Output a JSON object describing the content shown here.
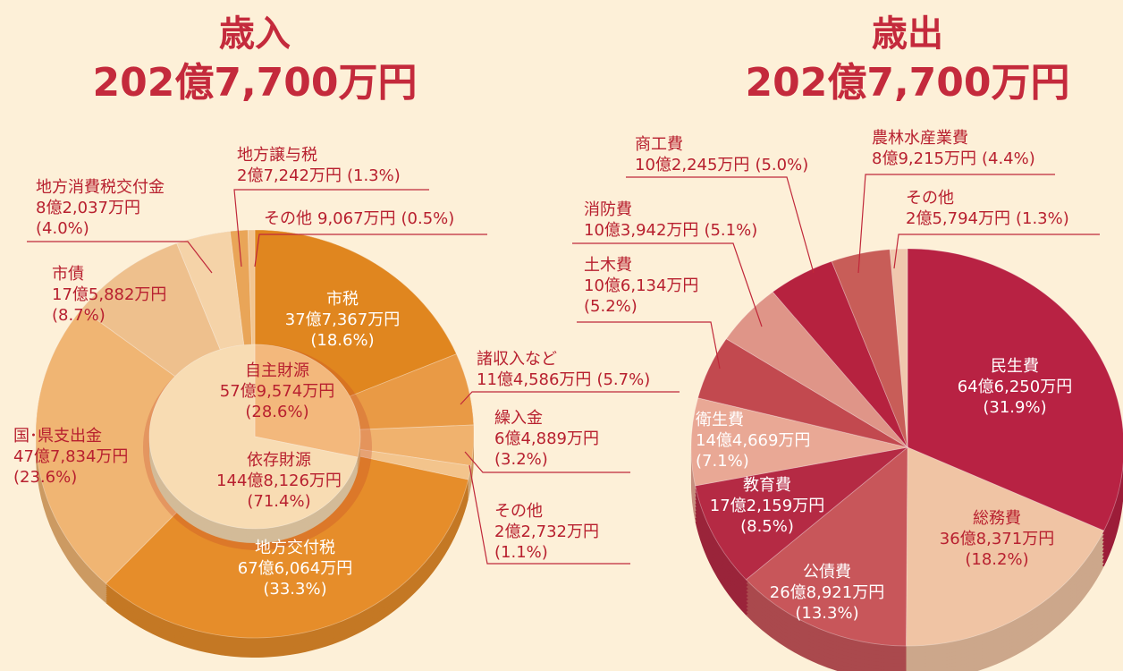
{
  "chart_data": [
    {
      "type": "pie",
      "title": "歳入",
      "subtitle": "202億7,700万円",
      "categories": [
        "市税",
        "諸収入など",
        "繰入金",
        "その他",
        "地方交付税",
        "国･県支出金",
        "市債",
        "地方消費税交付金",
        "地方譲与税",
        "その他"
      ],
      "amounts": [
        "37億7,367万円",
        "11億4,586万円",
        "6億4,889万円",
        "2億2,732万円",
        "67億6,064万円",
        "47億7,834万円",
        "17億5,882万円",
        "8億2,037万円",
        "2億7,242万円",
        "9,067万円"
      ],
      "values": [
        18.6,
        5.7,
        3.2,
        1.1,
        33.3,
        23.6,
        8.7,
        4.0,
        1.3,
        0.5
      ],
      "value_labels": [
        "(18.6%)",
        "(5.7%)",
        "(3.2%)",
        "(1.1%)",
        "(33.3%)",
        "(23.6%)",
        "(8.7%)",
        "(4.0%)",
        "(1.3%)",
        "(0.5%)"
      ],
      "colors": [
        "#e0861f",
        "#e99a45",
        "#f0b26e",
        "#f3c48c",
        "#e68d2a",
        "#f0b573",
        "#eec08d",
        "#f5d3a8",
        "#e9a558",
        "#f2c590"
      ],
      "inner": {
        "categories": [
          "自主財源",
          "依存財源"
        ],
        "amounts": [
          "57億9,574万円",
          "144億8,126万円"
        ],
        "values": [
          28.6,
          71.4
        ],
        "value_labels": [
          "(28.6%)",
          "(71.4%)"
        ],
        "colors": [
          "#f3b87c",
          "#f8dcb3"
        ]
      }
    },
    {
      "type": "pie",
      "title": "歳出",
      "subtitle": "202億7,700万円",
      "categories": [
        "民生費",
        "総務費",
        "公債費",
        "教育費",
        "衛生費",
        "土木費",
        "消防費",
        "商工費",
        "農林水産業費",
        "その他"
      ],
      "amounts": [
        "64億6,250万円",
        "36億8,371万円",
        "26億8,921万円",
        "17億2,159万円",
        "14億4,669万円",
        "10億6,134万円",
        "10億3,942万円",
        "10億2,245万円",
        "8億9,215万円",
        "2億5,794万円"
      ],
      "values": [
        31.9,
        18.2,
        13.3,
        8.5,
        7.1,
        5.2,
        5.1,
        5.0,
        4.4,
        1.3
      ],
      "value_labels": [
        "(31.9%)",
        "(18.2%)",
        "(13.3%)",
        "(8.5%)",
        "(7.1%)",
        "(5.2%)",
        "(5.1%)",
        "(5.0%)",
        "(4.4%)",
        "(1.3%)"
      ],
      "colors": [
        "#b82243",
        "#f0c4a4",
        "#c8565a",
        "#b52a44",
        "#e9a895",
        "#c2494f",
        "#df9588",
        "#b6223f",
        "#c85d58",
        "#f0c8ae"
      ]
    }
  ]
}
